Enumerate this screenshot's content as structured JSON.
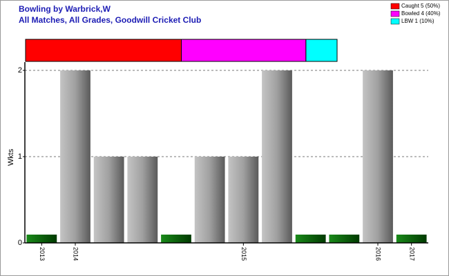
{
  "chart_data": {
    "type": "bar",
    "title": "Bowling by Warbrick,W",
    "subtitle": "All Matches, All Grades, Goodwill Cricket Club",
    "ylabel": "Wkts",
    "categories": [
      "2013",
      "2014",
      null,
      null,
      null,
      null,
      "2015",
      null,
      null,
      null,
      "2016",
      "2017"
    ],
    "values": [
      0,
      2,
      1,
      1,
      0,
      1,
      1,
      2,
      0,
      0,
      2,
      0
    ],
    "color": "#a0a0a0",
    "zero_color": "#0a6e0a",
    "ylim": [
      0,
      2
    ],
    "yticks": [
      0,
      1,
      2
    ],
    "grid": true,
    "breakdown": [
      {
        "name": "Caught 5 (50%)",
        "value": 5,
        "color": "#ff0000"
      },
      {
        "name": "Bowled 4 (40%)",
        "value": 4,
        "color": "#ff00ff"
      },
      {
        "name": "LBW 1 (10%)",
        "value": 1,
        "color": "#00ffff"
      }
    ],
    "legend": "top-right"
  }
}
